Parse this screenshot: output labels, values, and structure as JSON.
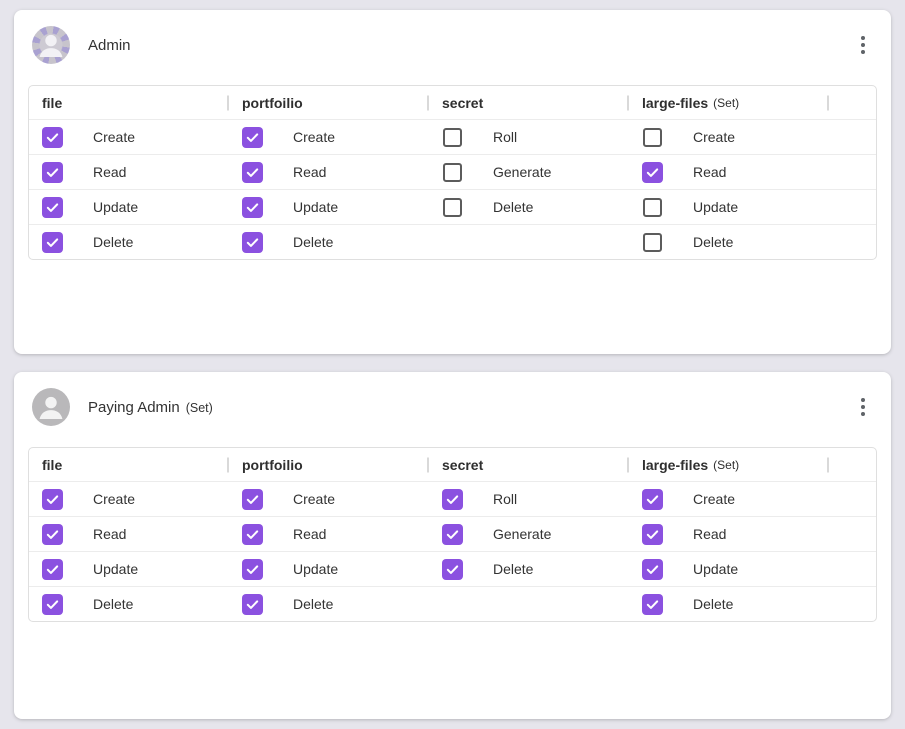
{
  "colors": {
    "page_bg": "#e6e5ec",
    "card_bg": "#ffffff",
    "accent": "#8b51e0",
    "checkbox_border": "#5c5c5c",
    "table_border": "#dfdfdf",
    "row_divider": "#ececec",
    "header_sep": "#d9d9d9",
    "text": "#333333",
    "header_text": "#2f2f2f",
    "kebab": "#5f6368",
    "avatar_plain_bg": "#b9b8ba",
    "avatar_pattern_purple": "#a9a1d1",
    "avatar_pattern_gray": "#c7c4cc"
  },
  "cards": [
    {
      "title": "Admin",
      "title_suffix": "",
      "avatar_icon": "patterned-person-avatar",
      "menu_icon": "kebab-vertical-icon",
      "columns": [
        {
          "header": "file",
          "header_suffix": "",
          "permissions": [
            {
              "label": "Create",
              "checked": true
            },
            {
              "label": "Read",
              "checked": true
            },
            {
              "label": "Update",
              "checked": true
            },
            {
              "label": "Delete",
              "checked": true
            }
          ]
        },
        {
          "header": "portfoilio",
          "header_suffix": "",
          "permissions": [
            {
              "label": "Create",
              "checked": true
            },
            {
              "label": "Read",
              "checked": true
            },
            {
              "label": "Update",
              "checked": true
            },
            {
              "label": "Delete",
              "checked": true
            }
          ]
        },
        {
          "header": "secret",
          "header_suffix": "",
          "permissions": [
            {
              "label": "Roll",
              "checked": false
            },
            {
              "label": "Generate",
              "checked": false
            },
            {
              "label": "Delete",
              "checked": false
            }
          ]
        },
        {
          "header": "large-files",
          "header_suffix": "(Set)",
          "permissions": [
            {
              "label": "Create",
              "checked": false
            },
            {
              "label": "Read",
              "checked": true
            },
            {
              "label": "Update",
              "checked": false
            },
            {
              "label": "Delete",
              "checked": false
            }
          ]
        }
      ]
    },
    {
      "title": "Paying Admin",
      "title_suffix": "(Set)",
      "avatar_icon": "plain-person-avatar",
      "menu_icon": "kebab-vertical-icon",
      "columns": [
        {
          "header": "file",
          "header_suffix": "",
          "permissions": [
            {
              "label": "Create",
              "checked": true
            },
            {
              "label": "Read",
              "checked": true
            },
            {
              "label": "Update",
              "checked": true
            },
            {
              "label": "Delete",
              "checked": true
            }
          ]
        },
        {
          "header": "portfoilio",
          "header_suffix": "",
          "permissions": [
            {
              "label": "Create",
              "checked": true
            },
            {
              "label": "Read",
              "checked": true
            },
            {
              "label": "Update",
              "checked": true
            },
            {
              "label": "Delete",
              "checked": true
            }
          ]
        },
        {
          "header": "secret",
          "header_suffix": "",
          "permissions": [
            {
              "label": "Roll",
              "checked": true
            },
            {
              "label": "Generate",
              "checked": true
            },
            {
              "label": "Delete",
              "checked": true
            }
          ]
        },
        {
          "header": "large-files",
          "header_suffix": "(Set)",
          "permissions": [
            {
              "label": "Create",
              "checked": true
            },
            {
              "label": "Read",
              "checked": true
            },
            {
              "label": "Update",
              "checked": true
            },
            {
              "label": "Delete",
              "checked": true
            }
          ]
        }
      ]
    }
  ]
}
